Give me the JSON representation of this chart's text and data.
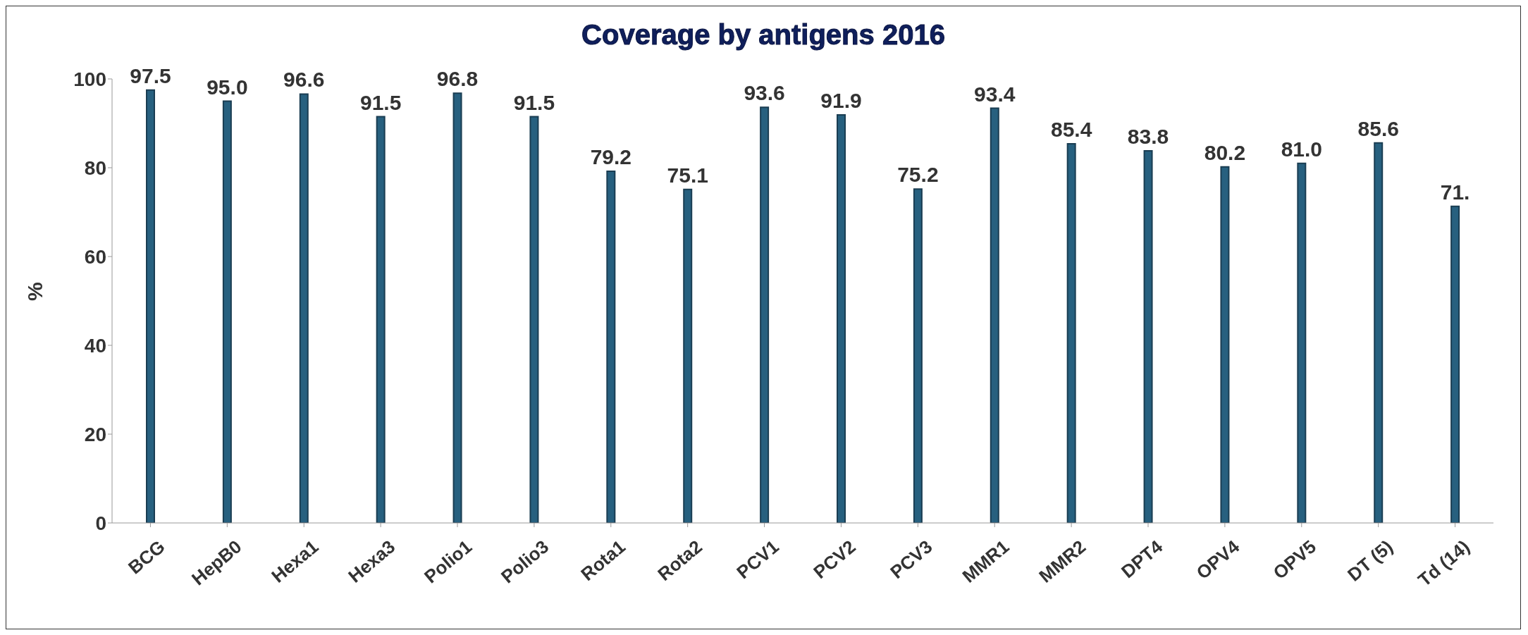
{
  "chart_data": {
    "type": "bar",
    "title": "Coverage by antigens 2016",
    "ylabel": "%",
    "categories": [
      "BCG",
      "HepB0",
      "Hexa1",
      "Hexa3",
      "Polio1",
      "Polio3",
      "Rota1",
      "Rota2",
      "PCV1",
      "PCV2",
      "PCV3",
      "MMR1",
      "MMR2",
      "DPT4",
      "OPV4",
      "OPV5",
      "DT (5)",
      "Td (14)"
    ],
    "values": [
      97.5,
      95.0,
      96.6,
      91.5,
      96.8,
      91.5,
      79.2,
      75.1,
      93.6,
      91.9,
      75.2,
      93.4,
      85.4,
      83.8,
      80.2,
      81.0,
      85.6,
      71.3
    ],
    "value_labels": [
      "97.5",
      "95.0",
      "96.6",
      "91.5",
      "96.8",
      "91.5",
      "79.2",
      "75.1",
      "93.6",
      "91.9",
      "75.2",
      "93.4",
      "85.4",
      "83.8",
      "80.2",
      "81.0",
      "85.6",
      "71."
    ],
    "color": "#27607f",
    "ylim": [
      0,
      100
    ],
    "yticks": [
      0,
      20,
      40,
      60,
      80,
      100
    ],
    "grid": false,
    "legend": false
  }
}
